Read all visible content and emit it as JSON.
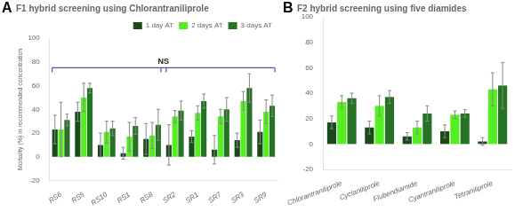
{
  "chart_data": [
    {
      "type": "bar",
      "title": "F1 hybrid screening using Chlorantraniliprole",
      "annotations": [
        {
          "text": "A"
        },
        {
          "text": "NS",
          "y": 75,
          "groups": [
            [
              "RS6",
              "RS8"
            ],
            [
              "SR2",
              "SR9"
            ]
          ]
        }
      ],
      "categories": [
        "RS6",
        "RS5",
        "RS10",
        "RS1",
        "RS8",
        "SR2",
        "SR1",
        "SR7",
        "SR3",
        "SR9"
      ],
      "ylabel": "Mortality (%) in recommended concentration",
      "ylim": [
        -20,
        100
      ],
      "yticks": [
        -20,
        0,
        20,
        40,
        60,
        80,
        100
      ],
      "grid": false,
      "legend": "upper right",
      "series": [
        {
          "name": "1 day AT",
          "color": "#1a4a1a",
          "values": [
            23,
            38,
            10,
            3,
            15,
            10,
            17,
            6,
            14,
            21
          ],
          "errors": [
            12,
            8,
            10,
            5,
            13,
            17,
            5,
            12,
            6,
            10
          ]
        },
        {
          "name": "2 days AT",
          "color": "#55ee22",
          "values": [
            23,
            50,
            21,
            17,
            18,
            34,
            37,
            34,
            47,
            38
          ],
          "errors": [
            23,
            12,
            9,
            12,
            11,
            5,
            6,
            6,
            8,
            10
          ]
        },
        {
          "name": "3 days AT",
          "color": "#267326",
          "values": [
            31,
            58,
            24,
            26,
            27,
            39,
            47,
            40,
            58,
            43
          ],
          "errors": [
            5,
            4,
            6,
            7,
            13,
            8,
            6,
            10,
            12,
            9
          ]
        }
      ]
    },
    {
      "type": "bar",
      "title": "F2 hybrid screening using five diamides",
      "annotations": [
        {
          "text": "B"
        }
      ],
      "categories": [
        "Chlorantraniliprole",
        "Cyclaniliprole",
        "Flubendiamide",
        "Cyantraniliprole",
        "Tetraniliprole"
      ],
      "ylim": [
        -20,
        100
      ],
      "yticks": [
        -20,
        0,
        20,
        40,
        60,
        80,
        100
      ],
      "grid": false,
      "series": [
        {
          "color": "#1a4a1a",
          "values": [
            17,
            13,
            6,
            10,
            2
          ],
          "errors": [
            5,
            5,
            3,
            5,
            3
          ]
        },
        {
          "color": "#55ee22",
          "values": [
            33,
            30,
            13,
            23,
            43
          ],
          "errors": [
            5,
            8,
            5,
            3,
            13
          ]
        },
        {
          "color": "#267326",
          "values": [
            36,
            37,
            24,
            24,
            46
          ],
          "errors": [
            4,
            5,
            6,
            3,
            18
          ]
        }
      ]
    }
  ]
}
